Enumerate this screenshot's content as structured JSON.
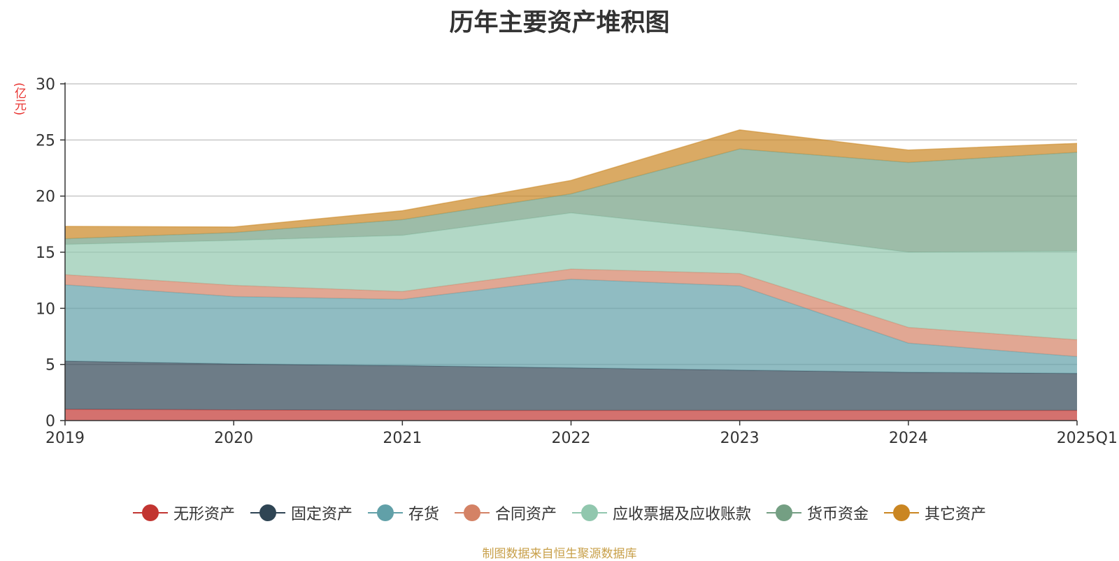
{
  "chart_data": {
    "type": "area",
    "stacked": true,
    "title": "历年主要资产堆积图",
    "y_unit": "(亿元)",
    "categories": [
      "2019",
      "2020",
      "2021",
      "2022",
      "2023",
      "2024",
      "2025Q1"
    ],
    "y_ticks": [
      "0",
      "5",
      "10",
      "15",
      "20",
      "25",
      "30"
    ],
    "ylim": [
      0,
      30
    ],
    "grid": true,
    "legend_position": "bottom",
    "series": [
      {
        "name": "无形资产",
        "color": "#c23531",
        "values": [
          1.0,
          0.95,
          0.9,
          0.9,
          0.9,
          0.9,
          0.9
        ]
      },
      {
        "name": "固定资产",
        "color": "#2f4554",
        "values": [
          4.3,
          4.1,
          4.0,
          3.8,
          3.6,
          3.4,
          3.3
        ]
      },
      {
        "name": "存货",
        "color": "#61a0a8",
        "values": [
          6.8,
          6.0,
          5.9,
          7.9,
          7.5,
          2.6,
          1.5
        ]
      },
      {
        "name": "合同资产",
        "color": "#d48265",
        "values": [
          0.9,
          1.0,
          0.7,
          0.9,
          1.1,
          1.4,
          1.5
        ]
      },
      {
        "name": "应收票据及应收账款",
        "color": "#91c7ae",
        "values": [
          2.7,
          4.0,
          5.0,
          5.0,
          3.8,
          6.7,
          7.9
        ]
      },
      {
        "name": "货币资金",
        "color": "#749f83",
        "values": [
          0.5,
          0.7,
          1.4,
          1.7,
          7.3,
          8.0,
          8.8
        ]
      },
      {
        "name": "其它资产",
        "color": "#ca8622",
        "values": [
          1.1,
          0.5,
          0.8,
          1.2,
          1.7,
          1.1,
          0.8
        ]
      }
    ]
  },
  "source_note": "制图数据来自恒生聚源数据库"
}
